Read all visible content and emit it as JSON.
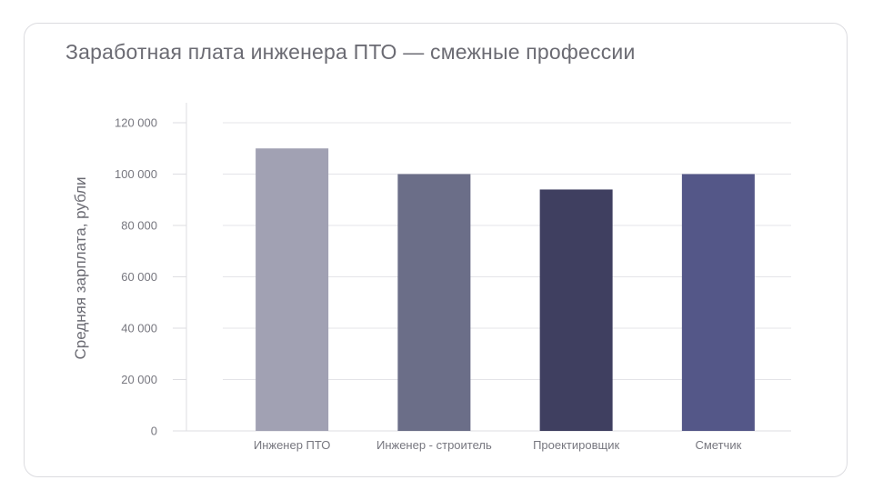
{
  "chart_data": {
    "type": "bar",
    "title": "Заработная плата инженера ПТО — смежные профессии",
    "xlabel": "",
    "ylabel": "Средняя зарплата, рубли",
    "categories": [
      "Инженер ПТО",
      "Инженер - строитель",
      "Проектировщик",
      "Сметчик"
    ],
    "values": [
      110000,
      100000,
      94000,
      100000
    ],
    "colors": [
      "#a1a1b3",
      "#6b6e88",
      "#3f3f60",
      "#545788"
    ],
    "ylim": [
      0,
      120000
    ],
    "yticks": [
      0,
      20000,
      40000,
      60000,
      80000,
      100000,
      120000
    ],
    "ytick_labels": [
      "0",
      "20 000",
      "40 000",
      "60 000",
      "80 000",
      "100 000",
      "120 000"
    ],
    "grid": true,
    "legend": "none"
  }
}
